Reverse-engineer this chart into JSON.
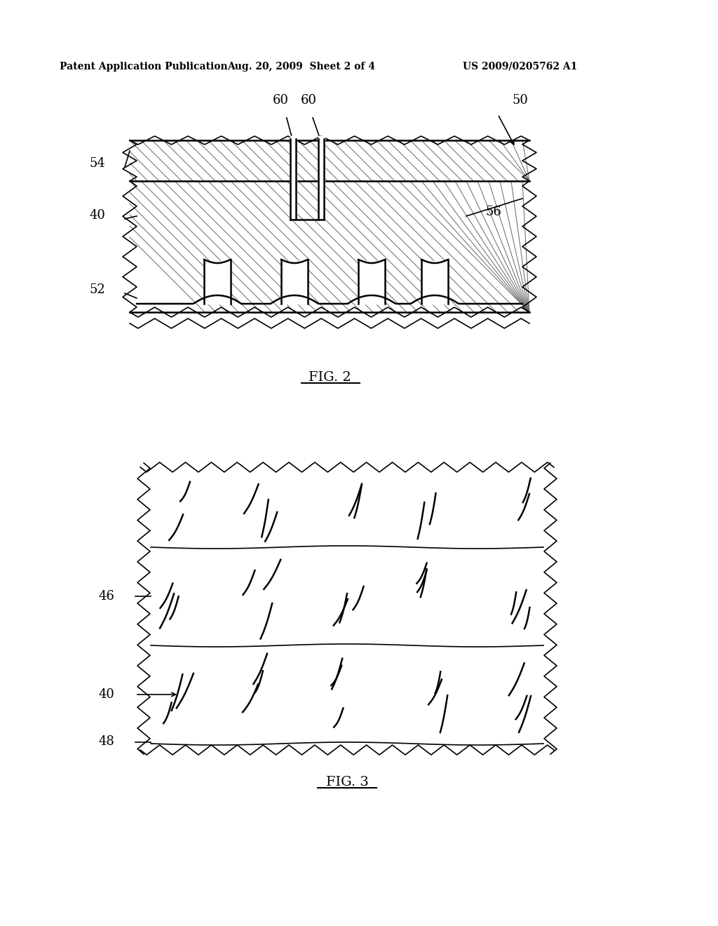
{
  "bg_color": "#ffffff",
  "text_color": "#000000",
  "header_left": "Patent Application Publication",
  "header_center": "Aug. 20, 2009  Sheet 2 of 4",
  "header_right": "US 2009/0205762 A1",
  "fig2_caption": "FIG. 2",
  "fig3_caption": "FIG. 3"
}
